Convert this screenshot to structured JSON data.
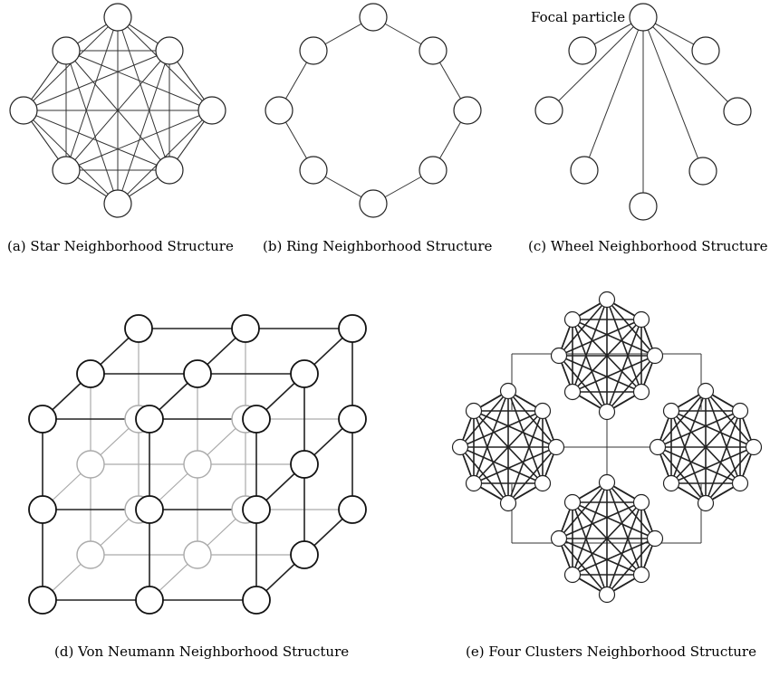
{
  "panels": {
    "a": {
      "caption": "(a) Star Neighborhood Structure"
    },
    "b": {
      "caption": "(b) Ring Neighborhood Structure"
    },
    "c": {
      "caption": "(c) Wheel Neighborhood Structure",
      "focal_label": "Focal particle"
    },
    "d": {
      "caption": "(d) Von Neumann Neighborhood Structure"
    },
    "e": {
      "caption": "(e) Four Clusters Neighborhood Structure"
    }
  }
}
